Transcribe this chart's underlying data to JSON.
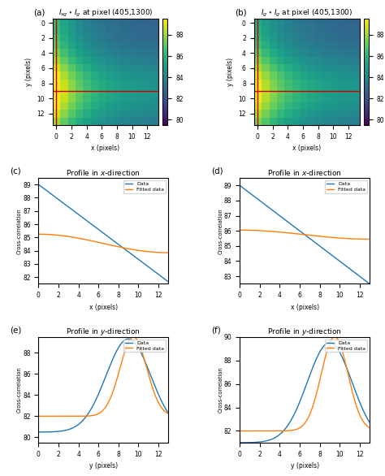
{
  "title_a": "$I_{sg} \\star I_g$ at pixel (405,1300)",
  "title_b": "$I_g \\star I_g$ at pixel (405,1300)",
  "title_c": "Profile in $x$-direction",
  "title_d": "Profile in $x$-direction",
  "title_e": "Profile in $y$-direction",
  "title_f": "Profile in $y$-direction",
  "colormap": "viridis",
  "cbar_ticks": [
    80,
    82,
    84,
    86,
    88
  ],
  "hline_y": 9,
  "vline_x": 0,
  "crosshair_color": "#cc0000",
  "label_data": "Data",
  "label_fitted": "Fitted data",
  "color_data": "#1f77b4",
  "color_fitted": "#ff7f0e",
  "panel_labels": [
    "(a)",
    "(b)",
    "(c)",
    "(d)",
    "(e)",
    "(f)"
  ],
  "x_ticks": [
    0,
    2,
    4,
    6,
    8,
    10,
    12
  ],
  "y_ticks_img": [
    0,
    2,
    4,
    6,
    8,
    10,
    12
  ],
  "grid_size": 14,
  "vmin": 79.5,
  "vmax": 89.5,
  "ylim_c": [
    81.5,
    89.5
  ],
  "ylim_d": [
    82.5,
    89.5
  ],
  "ylim_e": [
    79.5,
    89.5
  ],
  "ylim_f": [
    81.0,
    90.0
  ]
}
